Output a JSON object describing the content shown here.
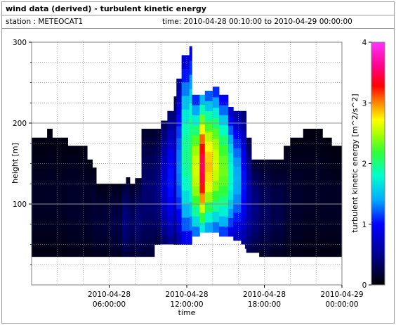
{
  "header": {
    "title": "wind data (derived) - turbulent kinetic energy",
    "station": "station : METEOCAT1",
    "timerange": "time: 2010-04-28 00:10:00 to 2010-04-29 00:00:00"
  },
  "chart_data": {
    "type": "heatmap",
    "title": "wind data (derived) - turbulent kinetic energy",
    "xlabel": "time",
    "ylabel": "height [m]",
    "colorbar_label": "turbulent kinetic energy [m^2/s^2]",
    "x_unit": "hours since 2010-04-28 00:00:00",
    "xlim": [
      0,
      24
    ],
    "ylim": [
      0,
      300
    ],
    "x_ticks": [
      {
        "value": 6,
        "line1": "2010-04-28",
        "line2": "06:00:00"
      },
      {
        "value": 12,
        "line1": "2010-04-28",
        "line2": "12:00:00"
      },
      {
        "value": 18,
        "line1": "2010-04-28",
        "line2": "18:00:00"
      },
      {
        "value": 24,
        "line1": "2010-04-29",
        "line2": "00:00:00"
      }
    ],
    "y_ticks": [
      100,
      200,
      300
    ],
    "colorbar": {
      "min": 0,
      "max": 4,
      "ticks": [
        0,
        1,
        2,
        3,
        4
      ]
    },
    "grid": true,
    "columns": [
      {
        "t0": 0.0,
        "t1": 1.2,
        "bottom": 35,
        "top": 182,
        "tke": 0.1
      },
      {
        "t0": 1.2,
        "t1": 1.6,
        "bottom": 35,
        "top": 193,
        "tke": 0.1
      },
      {
        "t0": 1.6,
        "t1": 2.8,
        "bottom": 35,
        "top": 182,
        "tke": 0.1
      },
      {
        "t0": 2.8,
        "t1": 4.3,
        "bottom": 35,
        "top": 172,
        "tke": 0.12
      },
      {
        "t0": 4.3,
        "t1": 4.7,
        "bottom": 35,
        "top": 155,
        "tke": 0.12
      },
      {
        "t0": 4.7,
        "t1": 5.0,
        "bottom": 35,
        "top": 145,
        "tke": 0.15
      },
      {
        "t0": 5.0,
        "t1": 6.0,
        "bottom": 35,
        "top": 125,
        "tke": 0.15
      },
      {
        "t0": 6.0,
        "t1": 7.0,
        "bottom": 35,
        "top": 125,
        "tke": 0.18
      },
      {
        "t0": 7.0,
        "t1": 7.3,
        "bottom": 35,
        "top": 125,
        "tke": 0.35
      },
      {
        "t0": 7.3,
        "t1": 7.6,
        "bottom": 35,
        "top": 133,
        "tke": 0.3
      },
      {
        "t0": 7.6,
        "t1": 8.0,
        "bottom": 35,
        "top": 125,
        "tke": 0.25
      },
      {
        "t0": 8.0,
        "t1": 8.5,
        "bottom": 35,
        "top": 132,
        "tke": 0.3
      },
      {
        "t0": 8.5,
        "t1": 9.5,
        "bottom": 35,
        "top": 193,
        "tke": 0.3
      },
      {
        "t0": 9.5,
        "t1": 10.0,
        "bottom": 50,
        "top": 193,
        "tke": 0.35
      },
      {
        "t0": 10.0,
        "t1": 10.5,
        "bottom": 50,
        "top": 203,
        "tke": 0.6
      },
      {
        "t0": 10.5,
        "t1": 11.0,
        "bottom": 50,
        "top": 215,
        "tke": 0.8
      },
      {
        "t0": 11.0,
        "t1": 11.2,
        "bottom": 50,
        "top": 233,
        "tke": 0.55
      },
      {
        "t0": 11.2,
        "t1": 11.6,
        "bottom": 50,
        "top": 255,
        "tke": 1.0
      },
      {
        "t0": 11.6,
        "t1": 12.2,
        "bottom": 50,
        "top": 284,
        "tke": 1.5
      },
      {
        "t0": 12.2,
        "t1": 12.4,
        "bottom": 50,
        "top": 295,
        "tke": 1.6
      },
      {
        "t0": 12.4,
        "t1": 13.0,
        "bottom": 60,
        "top": 235,
        "tke": 2.0
      },
      {
        "t0": 13.0,
        "t1": 13.4,
        "bottom": 65,
        "top": 235,
        "tke": 2.7
      },
      {
        "t0": 13.4,
        "t1": 14.0,
        "bottom": 65,
        "top": 240,
        "tke": 2.2
      },
      {
        "t0": 14.0,
        "t1": 14.5,
        "bottom": 65,
        "top": 245,
        "tke": 2.0
      },
      {
        "t0": 14.5,
        "t1": 15.2,
        "bottom": 60,
        "top": 235,
        "tke": 1.8
      },
      {
        "t0": 15.2,
        "t1": 15.6,
        "bottom": 60,
        "top": 220,
        "tke": 1.4
      },
      {
        "t0": 15.6,
        "t1": 16.2,
        "bottom": 55,
        "top": 215,
        "tke": 1.1
      },
      {
        "t0": 16.2,
        "t1": 16.6,
        "bottom": 45,
        "top": 215,
        "tke": 0.8
      },
      {
        "t0": 16.6,
        "t1": 17.0,
        "bottom": 40,
        "top": 182,
        "tke": 0.5
      },
      {
        "t0": 17.0,
        "t1": 17.6,
        "bottom": 40,
        "top": 155,
        "tke": 0.35
      },
      {
        "t0": 17.6,
        "t1": 18.5,
        "bottom": 35,
        "top": 155,
        "tke": 0.25
      },
      {
        "t0": 18.5,
        "t1": 19.5,
        "bottom": 35,
        "top": 155,
        "tke": 0.2
      },
      {
        "t0": 19.5,
        "t1": 20.0,
        "bottom": 35,
        "top": 172,
        "tke": 0.15
      },
      {
        "t0": 20.0,
        "t1": 21.0,
        "bottom": 35,
        "top": 182,
        "tke": 0.12
      },
      {
        "t0": 21.0,
        "t1": 22.5,
        "bottom": 35,
        "top": 193,
        "tke": 0.1
      },
      {
        "t0": 22.5,
        "t1": 23.2,
        "bottom": 35,
        "top": 182,
        "tke": 0.1
      },
      {
        "t0": 23.2,
        "t1": 24.0,
        "bottom": 35,
        "top": 172,
        "tke": 0.1
      }
    ],
    "gaps": [
      {
        "t0": 10.0,
        "t1": 11.0,
        "bottom": 35,
        "top": 50
      },
      {
        "t0": 15.2,
        "t1": 16.5,
        "bottom": 35,
        "top": 50
      }
    ]
  }
}
